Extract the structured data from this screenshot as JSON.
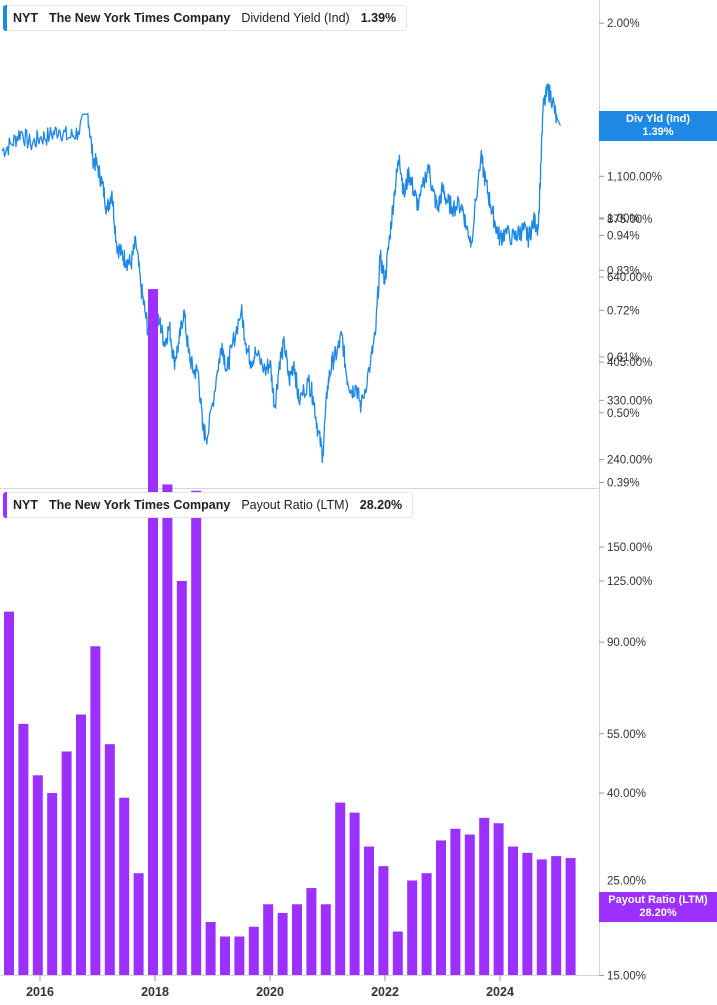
{
  "top_panel": {
    "legend": {
      "ticker": "NYT",
      "company": "The New York Times Company",
      "metric": "Dividend Yield (Ind)",
      "value": "1.39%"
    },
    "badge": {
      "label": "Div Yld (Ind)",
      "value": "1.39%"
    }
  },
  "bottom_panel": {
    "legend": {
      "ticker": "NYT",
      "company": "The New York Times Company",
      "metric": "Payout Ratio (LTM)",
      "value": "28.20%"
    },
    "badge": {
      "label": "Payout Ratio (LTM)",
      "value": "28.20%"
    }
  },
  "colors": {
    "yield_line": "#1e88e5",
    "payout_bars": "#9b30ff",
    "text": "#333333",
    "grid": "#d6d6d6"
  },
  "chart_data": [
    {
      "type": "line",
      "scale": "log",
      "series": [
        {
          "name": "Dividend Yield (Ind)",
          "points": [
            [
              "2015-05",
              1.27
            ],
            [
              "2015-07",
              1.3
            ],
            [
              "2015-09",
              1.36
            ],
            [
              "2015-11",
              1.3
            ],
            [
              "2016-01",
              1.33
            ],
            [
              "2016-03",
              1.34
            ],
            [
              "2016-05",
              1.37
            ],
            [
              "2016-07",
              1.33
            ],
            [
              "2016-09",
              1.36
            ],
            [
              "2016-11",
              1.45
            ],
            [
              "2016-12",
              1.24
            ],
            [
              "2017-01",
              1.2
            ],
            [
              "2017-02",
              1.13
            ],
            [
              "2017-03",
              1.03
            ],
            [
              "2017-04",
              1.1
            ],
            [
              "2017-05",
              0.91
            ],
            [
              "2017-06",
              0.88
            ],
            [
              "2017-07",
              0.86
            ],
            [
              "2017-08",
              0.85
            ],
            [
              "2017-09",
              0.92
            ],
            [
              "2017-10",
              0.79
            ],
            [
              "2017-11",
              0.71
            ],
            [
              "2017-12",
              0.64
            ],
            [
              "2018-01",
              0.69
            ],
            [
              "2018-02",
              0.69
            ],
            [
              "2018-03",
              0.64
            ],
            [
              "2018-04",
              0.68
            ],
            [
              "2018-05",
              0.6
            ],
            [
              "2018-06",
              0.64
            ],
            [
              "2018-07",
              0.72
            ],
            [
              "2018-08",
              0.62
            ],
            [
              "2018-09",
              0.58
            ],
            [
              "2018-10",
              0.58
            ],
            [
              "2018-11",
              0.47
            ],
            [
              "2018-12",
              0.46
            ],
            [
              "2019-02",
              0.58
            ],
            [
              "2019-03",
              0.64
            ],
            [
              "2019-04",
              0.58
            ],
            [
              "2019-05",
              0.63
            ],
            [
              "2019-07",
              0.72
            ],
            [
              "2019-08",
              0.64
            ],
            [
              "2019-09",
              0.6
            ],
            [
              "2019-10",
              0.62
            ],
            [
              "2019-12",
              0.58
            ],
            [
              "2020-01",
              0.6
            ],
            [
              "2020-02",
              0.51
            ],
            [
              "2020-03",
              0.6
            ],
            [
              "2020-04",
              0.64
            ],
            [
              "2020-05",
              0.56
            ],
            [
              "2020-06",
              0.6
            ],
            [
              "2020-07",
              0.52
            ],
            [
              "2020-09",
              0.56
            ],
            [
              "2020-10",
              0.53
            ],
            [
              "2020-11",
              0.47
            ],
            [
              "2020-12",
              0.43
            ],
            [
              "2021-01",
              0.55
            ],
            [
              "2021-02",
              0.6
            ],
            [
              "2021-03",
              0.62
            ],
            [
              "2021-04",
              0.66
            ],
            [
              "2021-05",
              0.57
            ],
            [
              "2021-06",
              0.54
            ],
            [
              "2021-07",
              0.55
            ],
            [
              "2021-08",
              0.51
            ],
            [
              "2021-10",
              0.6
            ],
            [
              "2021-11",
              0.66
            ],
            [
              "2021-12",
              0.87
            ],
            [
              "2022-01",
              0.8
            ],
            [
              "2022-02",
              0.94
            ],
            [
              "2022-03",
              1.1
            ],
            [
              "2022-04",
              1.25
            ],
            [
              "2022-05",
              1.08
            ],
            [
              "2022-06",
              1.18
            ],
            [
              "2022-07",
              1.1
            ],
            [
              "2022-08",
              1.04
            ],
            [
              "2022-10",
              1.21
            ],
            [
              "2022-11",
              1.1
            ],
            [
              "2022-12",
              1.03
            ],
            [
              "2023-01",
              1.11
            ],
            [
              "2023-02",
              1.06
            ],
            [
              "2023-03",
              1.04
            ],
            [
              "2023-05",
              1.05
            ],
            [
              "2023-06",
              0.97
            ],
            [
              "2023-07",
              0.92
            ],
            [
              "2023-09",
              1.24
            ],
            [
              "2023-10",
              1.14
            ],
            [
              "2023-11",
              1.05
            ],
            [
              "2023-12",
              0.98
            ],
            [
              "2024-01",
              0.93
            ],
            [
              "2024-02",
              0.95
            ],
            [
              "2024-04",
              0.93
            ],
            [
              "2024-05",
              0.95
            ],
            [
              "2024-06",
              0.96
            ],
            [
              "2024-07",
              0.93
            ],
            [
              "2024-08",
              0.99
            ],
            [
              "2024-09",
              0.97
            ],
            [
              "2024-10",
              1.48
            ],
            [
              "2024-11",
              1.58
            ],
            [
              "2024-12",
              1.52
            ],
            [
              "2025-01",
              1.39
            ]
          ]
        }
      ],
      "yticks": [
        2.0,
        1.0,
        0.94,
        0.83,
        0.72,
        0.61,
        0.5,
        0.39
      ],
      "ytick_labels": [
        "2.00%",
        "1.00%",
        "0.94%",
        "0.83%",
        "0.72%",
        "0.61%",
        "0.50%",
        "0.39%"
      ],
      "ylim": [
        0.39,
        2.1
      ]
    },
    {
      "type": "bar",
      "scale": "log",
      "series": [
        {
          "name": "Payout Ratio (LTM)",
          "points": [
            [
              "2015-12",
              106
            ],
            [
              "2016-03",
              58
            ],
            [
              "2016-06",
              44
            ],
            [
              "2016-09",
              40
            ],
            [
              "2016-12",
              50
            ],
            [
              "2017-03",
              61
            ],
            [
              "2017-06",
              88
            ],
            [
              "2017-09",
              52
            ],
            [
              "2017-12",
              39
            ],
            [
              "2018-03",
              26
            ],
            [
              "2018-06",
              600
            ],
            [
              "2018-09",
              210
            ],
            [
              "2018-12",
              125
            ],
            [
              "2019-03",
              203
            ],
            [
              "2019-06",
              20
            ],
            [
              "2019-09",
              18.5
            ],
            [
              "2019-12",
              18.5
            ],
            [
              "2019-12",
              19.5
            ],
            [
              "2020-03",
              22
            ],
            [
              "2020-06",
              21
            ],
            [
              "2020-09",
              22
            ],
            [
              "2020-12",
              24
            ],
            [
              "2021-03",
              22
            ],
            [
              "2021-06",
              38
            ],
            [
              "2021-09",
              36
            ],
            [
              "2021-12",
              30
            ],
            [
              "2022-03",
              27
            ],
            [
              "2022-06",
              19
            ],
            [
              "2022-09",
              25
            ],
            [
              "2022-12",
              26
            ],
            [
              "2023-03",
              31
            ],
            [
              "2023-06",
              33
            ],
            [
              "2023-09",
              32
            ],
            [
              "2023-12",
              35
            ],
            [
              "2024-03",
              34
            ],
            [
              "2024-06",
              30
            ],
            [
              "2024-09",
              29
            ],
            [
              "2024-12",
              28
            ],
            [
              "2025-03",
              28.5
            ],
            [
              "2025-06",
              28.2
            ]
          ]
        }
      ],
      "yticks": [
        1100,
        875,
        640,
        405,
        330,
        240,
        150,
        125,
        90,
        55,
        40,
        15
      ],
      "ytick_labels": [
        "1,100.00%",
        "875.00%",
        "640.00%",
        "405.00%",
        "330.00%",
        "240.00%",
        "150.00%",
        "125.00%",
        "90.00%",
        "55.00%",
        "40.00%",
        "15.00%"
      ],
      "ylim": [
        15,
        1100
      ],
      "hidden_tick_label": "25.00%"
    }
  ],
  "x_axis": {
    "ticks": [
      "2016",
      "2018",
      "2020",
      "2022",
      "2024"
    ]
  }
}
